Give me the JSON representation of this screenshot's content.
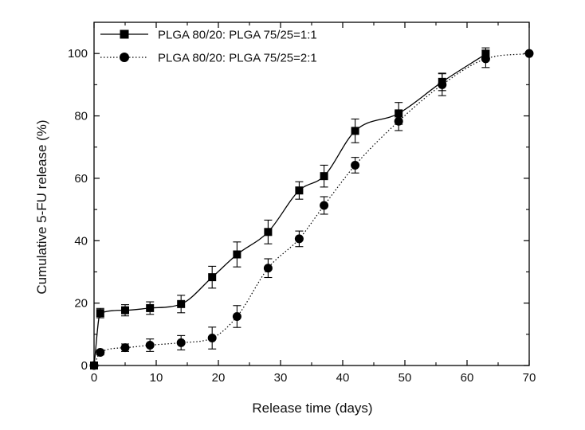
{
  "chart_data": {
    "type": "line",
    "title": "",
    "xlabel": "Release time (days)",
    "ylabel": "Cumulative 5-FU release (%)",
    "xlim": [
      0,
      70
    ],
    "ylim": [
      0,
      110
    ],
    "xticks": [
      0,
      10,
      20,
      30,
      40,
      50,
      60,
      70
    ],
    "yticks": [
      0,
      20,
      40,
      60,
      80,
      100
    ],
    "grid": false,
    "legend_position": "top-left",
    "series": [
      {
        "name": "PLGA 80/20: PLGA 75/25=1:1",
        "marker": "square",
        "line_style": "solid",
        "color": "#000000",
        "x": [
          0,
          1,
          5,
          9,
          14,
          19,
          23,
          28,
          33,
          37,
          42,
          49,
          56,
          63
        ],
        "y": [
          0,
          16.8,
          17.7,
          18.4,
          19.7,
          28.3,
          35.6,
          42.8,
          56.1,
          60.7,
          75.2,
          80.8,
          90.9,
          99.8
        ],
        "error": [
          0,
          1.5,
          1.8,
          2.0,
          2.8,
          3.5,
          4.0,
          3.8,
          2.8,
          3.5,
          3.8,
          3.5,
          2.8,
          2.0
        ]
      },
      {
        "name": "PLGA 80/20: PLGA 75/25=2:1",
        "marker": "circle",
        "line_style": "dotted",
        "color": "#000000",
        "x": [
          0,
          1,
          5,
          9,
          14,
          19,
          23,
          28,
          33,
          37,
          42,
          49,
          56,
          63,
          70
        ],
        "y": [
          0,
          4.2,
          5.7,
          6.5,
          7.3,
          8.8,
          15.7,
          31.2,
          40.6,
          51.3,
          64.2,
          78.3,
          90.0,
          98.3,
          100.0
        ],
        "error": [
          0,
          0.8,
          1.2,
          2.0,
          2.3,
          3.5,
          3.5,
          3.0,
          2.5,
          2.8,
          2.5,
          3.0,
          3.5,
          2.8,
          0
        ]
      }
    ]
  }
}
